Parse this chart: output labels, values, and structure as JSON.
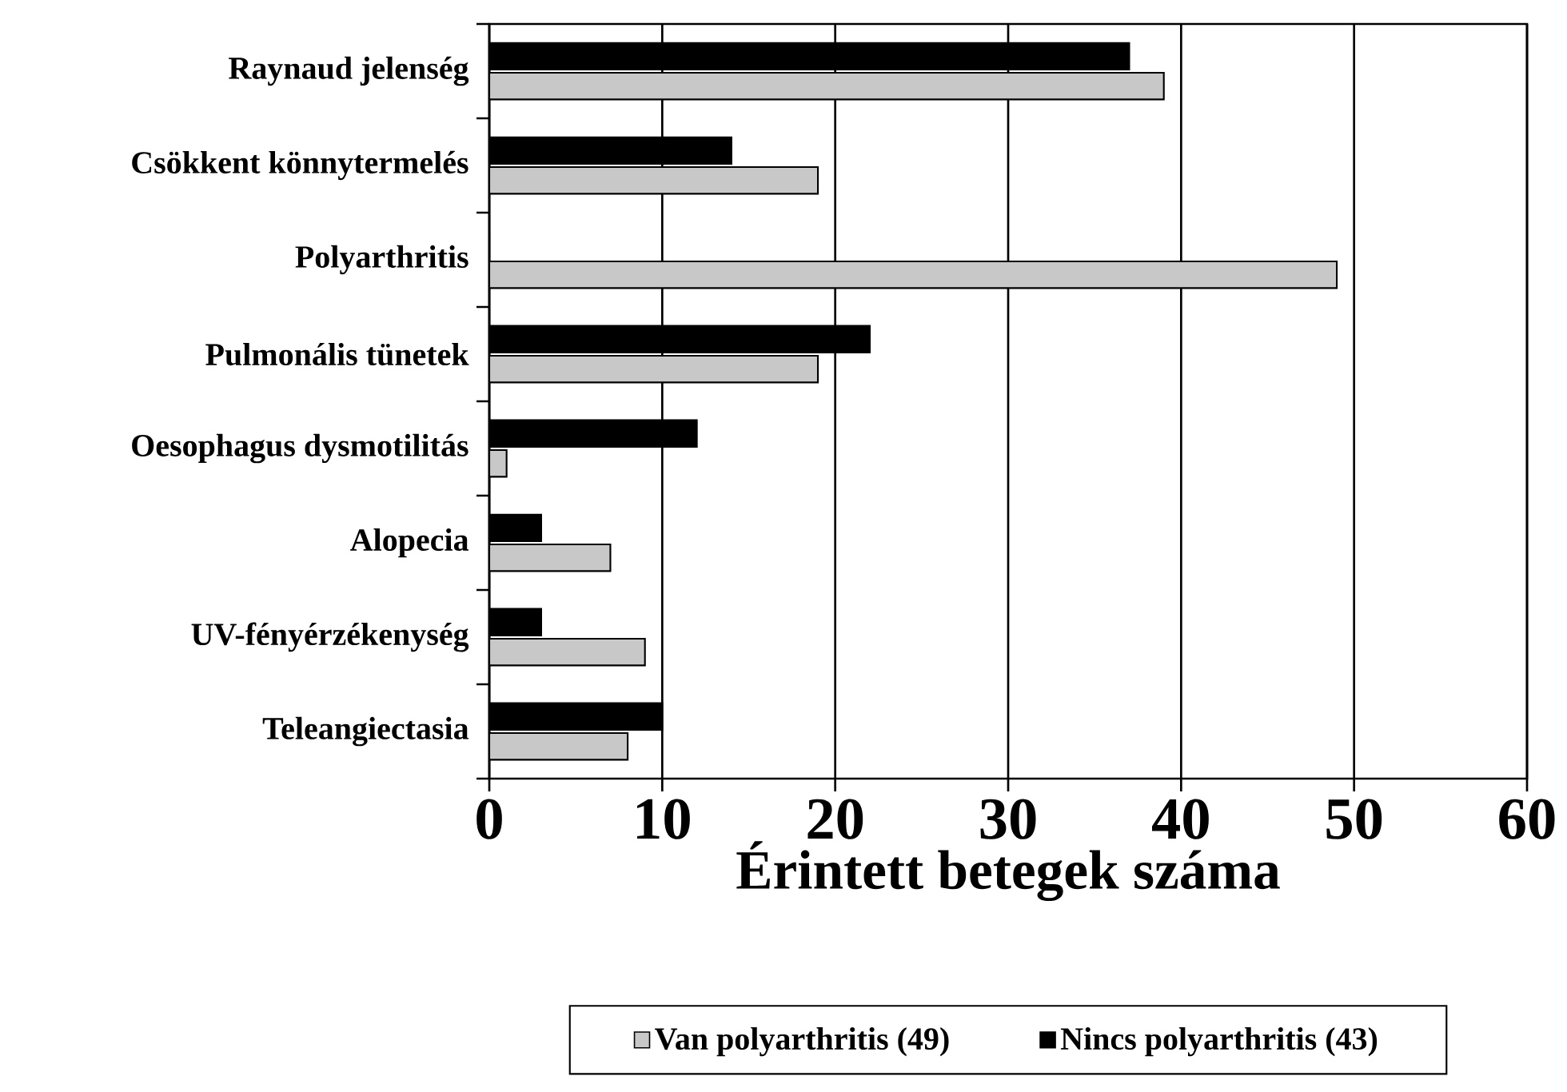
{
  "chart_data": {
    "type": "bar",
    "orientation": "horizontal",
    "xlabel": "Érintett betegek száma",
    "categories": [
      "Raynaud jelenség",
      "Csökkent könnytermelés",
      "Polyarthritis",
      "Pulmonális tünetek",
      "Oesophagus dysmotilitás",
      "Alopecia",
      "UV-fényérzékenység",
      "Teleangiectasia"
    ],
    "series": [
      {
        "name": "Van polyarthritis (49)",
        "color": "#c8c8c8",
        "values": [
          39,
          19,
          49,
          19,
          1,
          7,
          9,
          8
        ]
      },
      {
        "name": "Nincs polyarthritis (43)",
        "color": "#000000",
        "values": [
          37,
          14,
          0,
          22,
          12,
          3,
          3,
          10
        ]
      }
    ],
    "xlim": [
      0,
      60
    ],
    "xticks": [
      0,
      10,
      20,
      30,
      40,
      50,
      60
    ],
    "grid": "x",
    "legend": "bottom"
  }
}
